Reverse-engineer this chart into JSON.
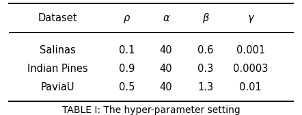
{
  "columns": [
    "Dataset",
    "ρ",
    "α",
    "β",
    "γ"
  ],
  "rows": [
    [
      "Salinas",
      "0.1",
      "40",
      "0.6",
      "0.001"
    ],
    [
      "Indian Pines",
      "0.9",
      "40",
      "0.3",
      "0.0003"
    ],
    [
      "PaviaU",
      "0.5",
      "40",
      "1.3",
      "0.01"
    ]
  ],
  "caption": "TABLE I: The hyper-parameter setting",
  "bg_color": "#ffffff",
  "text_color": "#000000",
  "font_size": 10.5,
  "caption_font_size": 10,
  "header_font_size": 10.5
}
